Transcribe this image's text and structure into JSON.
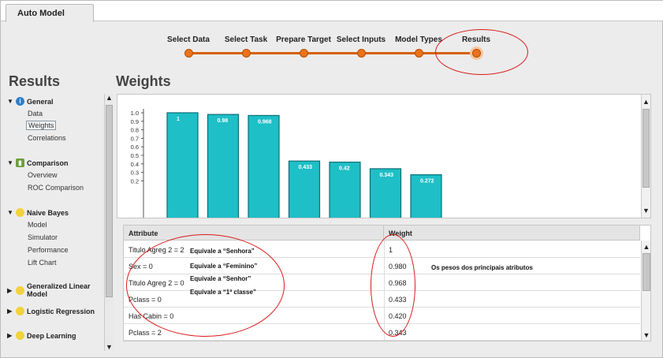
{
  "tab": {
    "label": "Auto Model"
  },
  "workflow": {
    "steps": [
      "Select Data",
      "Select Task",
      "Prepare Target",
      "Select Inputs",
      "Model Types",
      "Results"
    ],
    "current_index": 5
  },
  "sidebar": {
    "title": "Results",
    "groups": [
      {
        "label": "General",
        "icon": "info-icon",
        "expanded": true,
        "items": [
          "Data",
          "Weights",
          "Correlations"
        ],
        "selected": "Weights"
      },
      {
        "label": "Comparison",
        "icon": "comparison-icon",
        "expanded": true,
        "items": [
          "Overview",
          "ROC Comparison"
        ]
      },
      {
        "label": "Naive Bayes",
        "icon": "lightbulb-icon",
        "expanded": true,
        "items": [
          "Model",
          "Simulator",
          "Performance",
          "Lift Chart"
        ]
      },
      {
        "label": "Generalized Linear Model",
        "icon": "lightbulb-icon",
        "expanded": false,
        "items": []
      },
      {
        "label": "Logistic Regression",
        "icon": "lightbulb-icon",
        "expanded": false,
        "items": []
      },
      {
        "label": "Deep Learning",
        "icon": "lightbulb-icon",
        "expanded": false,
        "items": []
      }
    ]
  },
  "main": {
    "title": "Weights"
  },
  "chart_data": {
    "type": "bar",
    "values": [
      1,
      0.98,
      0.968,
      0.433,
      0.42,
      0.343,
      0.272
    ],
    "value_labels": [
      "1",
      "0.98",
      "0.968",
      "0.433",
      "0.42",
      "0.343",
      "0.272"
    ],
    "yticks": [
      "1.0",
      "0.9",
      "0.8",
      "0.7",
      "0.6",
      "0.5",
      "0.4",
      "0.3",
      "0.2"
    ],
    "ylim": [
      0.2,
      1.0
    ],
    "bar_color": "#1fbfc7"
  },
  "table": {
    "columns": [
      "Attribute",
      "Weight"
    ],
    "rows": [
      {
        "attribute": "Titulo Agreg 2 = 2",
        "weight": "1"
      },
      {
        "attribute": "Sex = 0",
        "weight": "0.980"
      },
      {
        "attribute": "Titulo Agreg 2 = 0",
        "weight": "0.968"
      },
      {
        "attribute": "Pclass = 0",
        "weight": "0.433"
      },
      {
        "attribute": "Has Cabin = 0",
        "weight": "0.420"
      },
      {
        "attribute": "Pclass = 2",
        "weight": "0.343"
      }
    ]
  },
  "annotations": {
    "senhora": "Equivale a “Senhora”",
    "feminino": "Equivale a “Feminino”",
    "senhor": "Equivale a “Senhor”",
    "primeira_classe": "Equivale a “1ª classe”",
    "pesos": "Os pesos dos principais atributos"
  }
}
